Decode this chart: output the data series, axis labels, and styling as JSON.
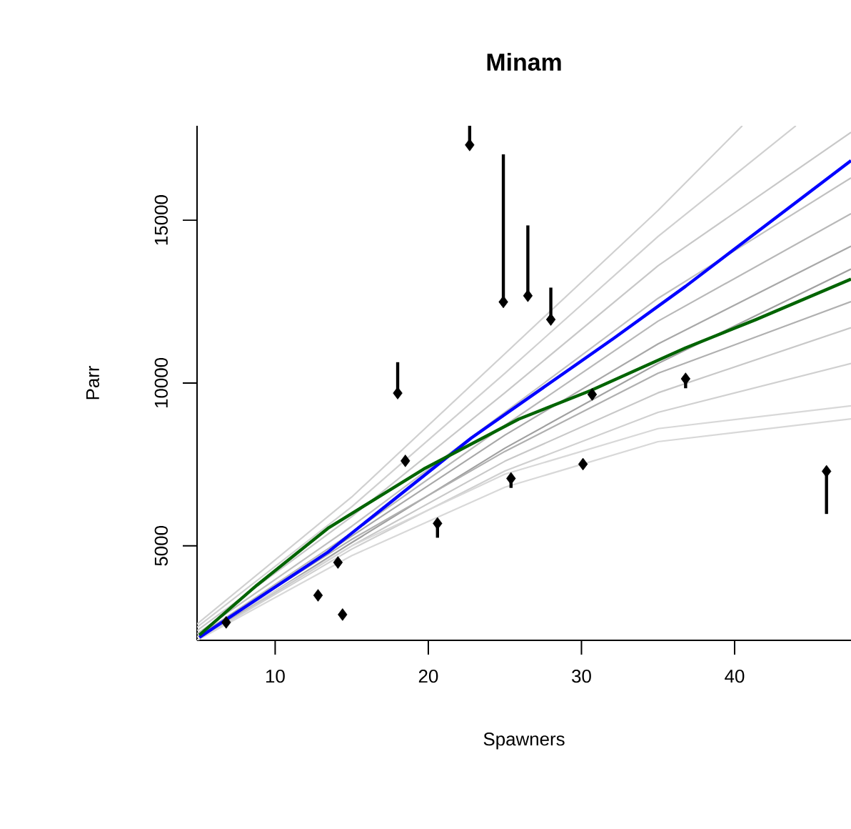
{
  "chart_data": {
    "type": "line",
    "title": "Minam",
    "xlabel": "Spawners",
    "ylabel": "Parr",
    "xlim": [
      4.9,
      47.6
    ],
    "ylim": [
      2100,
      17900
    ],
    "xticks": [
      10,
      20,
      30,
      40
    ],
    "yticks": [
      5000,
      10000,
      15000
    ],
    "grid": false,
    "series": [
      {
        "type": "line",
        "color": "#d0d0d0",
        "x": [
          4.9,
          15,
          25,
          35,
          40.5
        ],
        "values": [
          2600,
          6500,
          10900,
          15300,
          17900
        ]
      },
      {
        "type": "line",
        "color": "#d0d0d0",
        "x": [
          4.9,
          15,
          25,
          35,
          44
        ],
        "values": [
          2500,
          6200,
          10300,
          14500,
          17900
        ]
      },
      {
        "type": "line",
        "color": "#c8c8c8",
        "x": [
          4.9,
          15,
          25,
          35,
          47.6
        ],
        "values": [
          2400,
          5900,
          9700,
          13600,
          17700
        ]
      },
      {
        "type": "line",
        "color": "#c0c0c0",
        "x": [
          4.9,
          15,
          25,
          35,
          47.6
        ],
        "values": [
          2300,
          5600,
          9100,
          12600,
          16300
        ]
      },
      {
        "type": "line",
        "color": "#b8b8b8",
        "x": [
          4.9,
          15,
          25,
          35,
          47.6
        ],
        "values": [
          2200,
          5400,
          8700,
          11900,
          15200
        ]
      },
      {
        "type": "line",
        "color": "#a8a8a8",
        "x": [
          4.9,
          15,
          25,
          35,
          47.6
        ],
        "values": [
          2200,
          5300,
          8400,
          11200,
          14200
        ]
      },
      {
        "type": "line",
        "color": "#a0a0a0",
        "x": [
          4.9,
          15,
          25,
          35,
          47.6
        ],
        "values": [
          2100,
          5100,
          8000,
          10600,
          13500
        ]
      },
      {
        "type": "line",
        "color": "#b0b0b0",
        "x": [
          4.9,
          15,
          25,
          35,
          47.6
        ],
        "values": [
          2200,
          5200,
          7900,
          10300,
          12500
        ]
      },
      {
        "type": "line",
        "color": "#c8c8c8",
        "x": [
          4.9,
          15,
          25,
          35,
          47.6
        ],
        "values": [
          2100,
          5000,
          7600,
          9700,
          11700
        ]
      },
      {
        "type": "line",
        "color": "#d0d0d0",
        "x": [
          4.9,
          15,
          25,
          35,
          47.6
        ],
        "values": [
          2100,
          4900,
          7300,
          9100,
          10600
        ]
      },
      {
        "type": "line",
        "color": "#d8d8d8",
        "x": [
          4.9,
          15,
          25,
          35,
          47.6
        ],
        "values": [
          2200,
          5000,
          7200,
          8600,
          9300
        ]
      },
      {
        "type": "line",
        "color": "#d8d8d8",
        "x": [
          4.9,
          15,
          25,
          35,
          47.6
        ],
        "values": [
          2100,
          4700,
          6800,
          8200,
          8900
        ]
      },
      {
        "type": "line",
        "color": "#0000ff",
        "x": [
          5.05,
          13.45,
          22.8,
          32.1,
          36.8,
          47.6
        ],
        "values": [
          2190,
          4810,
          8310,
          11370,
          12970,
          16830
        ]
      },
      {
        "type": "line",
        "color": "#006400",
        "x": [
          5.05,
          8.8,
          13.45,
          19.7,
          25.9,
          30.6,
          36.8,
          41.4,
          47.6
        ],
        "values": [
          2260,
          3790,
          5540,
          7360,
          8890,
          9770,
          11080,
          11950,
          13190
        ]
      },
      {
        "type": "scatter",
        "color": "#000000",
        "marker": "diamond",
        "x": [
          6.8,
          12.8,
          14.1,
          14.4,
          18.0,
          18.5,
          20.6,
          22.7,
          24.9,
          25.4,
          26.5,
          28.0,
          30.1,
          30.7,
          36.8,
          46.0
        ],
        "values": [
          2650,
          3480,
          4490,
          2890,
          9690,
          7610,
          5690,
          17310,
          12490,
          7070,
          12680,
          11950,
          7510,
          9650,
          10130,
          7290
        ],
        "errors": [
          null,
          null,
          null,
          null,
          [
            9690,
            10640
          ],
          null,
          [
            5250,
            5690
          ],
          [
            17310,
            17900
          ],
          [
            12490,
            17020
          ],
          [
            6780,
            7070
          ],
          [
            12680,
            14840
          ],
          [
            11950,
            12930
          ],
          null,
          [
            9510,
            9650
          ],
          [
            9840,
            10130
          ],
          [
            5980,
            7290
          ]
        ]
      }
    ]
  }
}
